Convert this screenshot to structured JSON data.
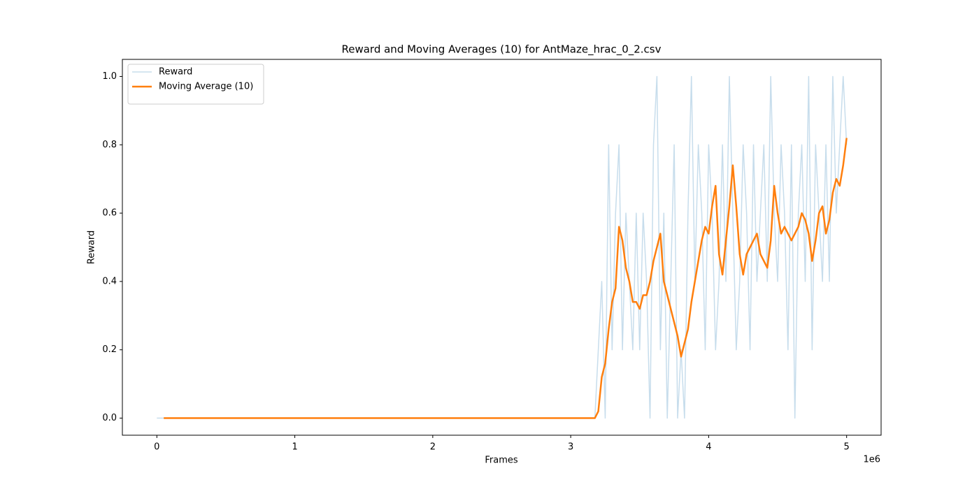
{
  "chart_data": {
    "type": "line",
    "title": "Reward and Moving Averages (10) for AntMaze_hrac_0_2.csv",
    "x_label": "Frames",
    "y_label": "Reward",
    "x_offset_label": "1e6",
    "legend": "upper left",
    "xlim": [
      -250000,
      5250000
    ],
    "ylim": [
      -0.05,
      1.05
    ],
    "xticks": [
      {
        "value": 0,
        "label": "0"
      },
      {
        "value": 1000000,
        "label": "1"
      },
      {
        "value": 2000000,
        "label": "2"
      },
      {
        "value": 3000000,
        "label": "3"
      },
      {
        "value": 4000000,
        "label": "4"
      },
      {
        "value": 5000000,
        "label": "5"
      }
    ],
    "yticks": [
      {
        "value": 0,
        "label": "0.0"
      },
      {
        "value": 0.2,
        "label": "0.2"
      },
      {
        "value": 0.4,
        "label": "0.4"
      },
      {
        "value": 0.6,
        "label": "0.6"
      },
      {
        "value": 0.8,
        "label": "0.8"
      },
      {
        "value": 1,
        "label": "1.0"
      }
    ],
    "x": [
      0,
      25000,
      50000,
      75000,
      100000,
      125000,
      150000,
      175000,
      200000,
      225000,
      250000,
      275000,
      300000,
      325000,
      350000,
      375000,
      400000,
      425000,
      450000,
      475000,
      500000,
      525000,
      550000,
      575000,
      600000,
      625000,
      650000,
      675000,
      700000,
      725000,
      750000,
      775000,
      800000,
      825000,
      850000,
      875000,
      900000,
      925000,
      950000,
      975000,
      1000000,
      1025000,
      1050000,
      1075000,
      1100000,
      1125000,
      1150000,
      1175000,
      1200000,
      1225000,
      1250000,
      1275000,
      1300000,
      1325000,
      1350000,
      1375000,
      1400000,
      1425000,
      1450000,
      1475000,
      1500000,
      1525000,
      1550000,
      1575000,
      1600000,
      1625000,
      1650000,
      1675000,
      1700000,
      1725000,
      1750000,
      1775000,
      1800000,
      1825000,
      1850000,
      1875000,
      1900000,
      1925000,
      1950000,
      1975000,
      2000000,
      2025000,
      2050000,
      2075000,
      2100000,
      2125000,
      2150000,
      2175000,
      2200000,
      2225000,
      2250000,
      2275000,
      2300000,
      2325000,
      2350000,
      2375000,
      2400000,
      2425000,
      2450000,
      2475000,
      2500000,
      2525000,
      2550000,
      2575000,
      2600000,
      2625000,
      2650000,
      2675000,
      2700000,
      2725000,
      2750000,
      2775000,
      2800000,
      2825000,
      2850000,
      2875000,
      2900000,
      2925000,
      2950000,
      2975000,
      3000000,
      3025000,
      3050000,
      3075000,
      3100000,
      3125000,
      3150000,
      3175000,
      3200000,
      3225000,
      3250000,
      3275000,
      3300000,
      3325000,
      3350000,
      3375000,
      3400000,
      3425000,
      3450000,
      3475000,
      3500000,
      3525000,
      3550000,
      3575000,
      3600000,
      3625000,
      3650000,
      3675000,
      3700000,
      3725000,
      3750000,
      3775000,
      3800000,
      3825000,
      3850000,
      3875000,
      3900000,
      3925000,
      3950000,
      3975000,
      4000000,
      4025000,
      4050000,
      4075000,
      4100000,
      4125000,
      4150000,
      4175000,
      4200000,
      4225000,
      4250000,
      4275000,
      4300000,
      4325000,
      4350000,
      4375000,
      4400000,
      4425000,
      4450000,
      4475000,
      4500000,
      4525000,
      4550000,
      4575000,
      4600000,
      4625000,
      4650000,
      4675000,
      4700000,
      4725000,
      4750000,
      4775000,
      4800000,
      4825000,
      4850000,
      4875000,
      4900000,
      4925000,
      4950000,
      4975000,
      5000000
    ],
    "series": [
      {
        "name": "Reward",
        "color": "#1f77b4",
        "alpha": 0.25,
        "width": 1.5,
        "values": [
          0,
          0,
          0,
          0,
          0,
          0,
          0,
          0,
          0,
          0,
          0,
          0,
          0,
          0,
          0,
          0,
          0,
          0,
          0,
          0,
          0,
          0,
          0,
          0,
          0,
          0,
          0,
          0,
          0,
          0,
          0,
          0,
          0,
          0,
          0,
          0,
          0,
          0,
          0,
          0,
          0,
          0,
          0,
          0,
          0,
          0,
          0,
          0,
          0,
          0,
          0,
          0,
          0,
          0,
          0,
          0,
          0,
          0,
          0,
          0,
          0,
          0,
          0,
          0,
          0,
          0,
          0,
          0,
          0,
          0,
          0,
          0,
          0,
          0,
          0,
          0,
          0,
          0,
          0,
          0,
          0,
          0,
          0,
          0,
          0,
          0,
          0,
          0,
          0,
          0,
          0,
          0,
          0,
          0,
          0,
          0,
          0,
          0,
          0,
          0,
          0,
          0,
          0,
          0,
          0,
          0,
          0,
          0,
          0,
          0,
          0,
          0,
          0,
          0,
          0,
          0,
          0,
          0,
          0,
          0,
          0,
          0,
          0,
          0,
          0,
          0,
          0,
          0,
          0.2,
          0.4,
          0,
          0.8,
          0.2,
          0.6,
          0.8,
          0.2,
          0.6,
          0.4,
          0.2,
          0.6,
          0.2,
          0.6,
          0.4,
          0,
          0.8,
          1,
          0.2,
          0.6,
          0,
          0.4,
          0.8,
          0,
          0.2,
          0,
          0.6,
          1,
          0.4,
          0.8,
          0.6,
          0.2,
          0.8,
          0.6,
          0.2,
          0.4,
          0.8,
          0.4,
          1,
          0.6,
          0.2,
          0.4,
          0.8,
          0.6,
          0.2,
          0.8,
          0.4,
          0.6,
          0.8,
          0.4,
          1,
          0.6,
          0.4,
          0.8,
          0.6,
          0.2,
          0.8,
          0,
          0.6,
          0.8,
          0.4,
          1,
          0.2,
          0.8,
          0.6,
          0.4,
          0.8,
          0.4,
          1,
          0.6,
          0.8,
          1,
          0.8
        ]
      },
      {
        "name": "Moving Average (10)",
        "color": "#ff7f0e",
        "alpha": 1,
        "width": 2.5,
        "values": [
          null,
          null,
          0,
          0,
          0,
          0,
          0,
          0,
          0,
          0,
          0,
          0,
          0,
          0,
          0,
          0,
          0,
          0,
          0,
          0,
          0,
          0,
          0,
          0,
          0,
          0,
          0,
          0,
          0,
          0,
          0,
          0,
          0,
          0,
          0,
          0,
          0,
          0,
          0,
          0,
          0,
          0,
          0,
          0,
          0,
          0,
          0,
          0,
          0,
          0,
          0,
          0,
          0,
          0,
          0,
          0,
          0,
          0,
          0,
          0,
          0,
          0,
          0,
          0,
          0,
          0,
          0,
          0,
          0,
          0,
          0,
          0,
          0,
          0,
          0,
          0,
          0,
          0,
          0,
          0,
          0,
          0,
          0,
          0,
          0,
          0,
          0,
          0,
          0,
          0,
          0,
          0,
          0,
          0,
          0,
          0,
          0,
          0,
          0,
          0,
          0,
          0,
          0,
          0,
          0,
          0,
          0,
          0,
          0,
          0,
          0,
          0,
          0,
          0,
          0,
          0,
          0,
          0,
          0,
          0,
          0,
          0,
          0,
          0,
          0,
          0,
          0,
          0,
          0.02,
          0.12,
          0.16,
          0.26,
          0.34,
          0.38,
          0.56,
          0.52,
          0.44,
          0.4,
          0.34,
          0.34,
          0.32,
          0.36,
          0.36,
          0.4,
          0.46,
          0.5,
          0.54,
          0.4,
          0.36,
          0.32,
          0.28,
          0.24,
          0.18,
          0.22,
          0.26,
          0.34,
          0.4,
          0.46,
          0.52,
          0.56,
          0.54,
          0.62,
          0.68,
          0.48,
          0.42,
          0.52,
          0.62,
          0.74,
          0.62,
          0.48,
          0.42,
          0.48,
          0.5,
          0.52,
          0.54,
          0.48,
          0.46,
          0.44,
          0.52,
          0.68,
          0.6,
          0.54,
          0.56,
          0.54,
          0.52,
          0.54,
          0.56,
          0.6,
          0.58,
          0.54,
          0.46,
          0.52,
          0.6,
          0.62,
          0.54,
          0.58,
          0.66,
          0.7,
          0.68,
          0.74,
          0.82
        ]
      }
    ]
  }
}
